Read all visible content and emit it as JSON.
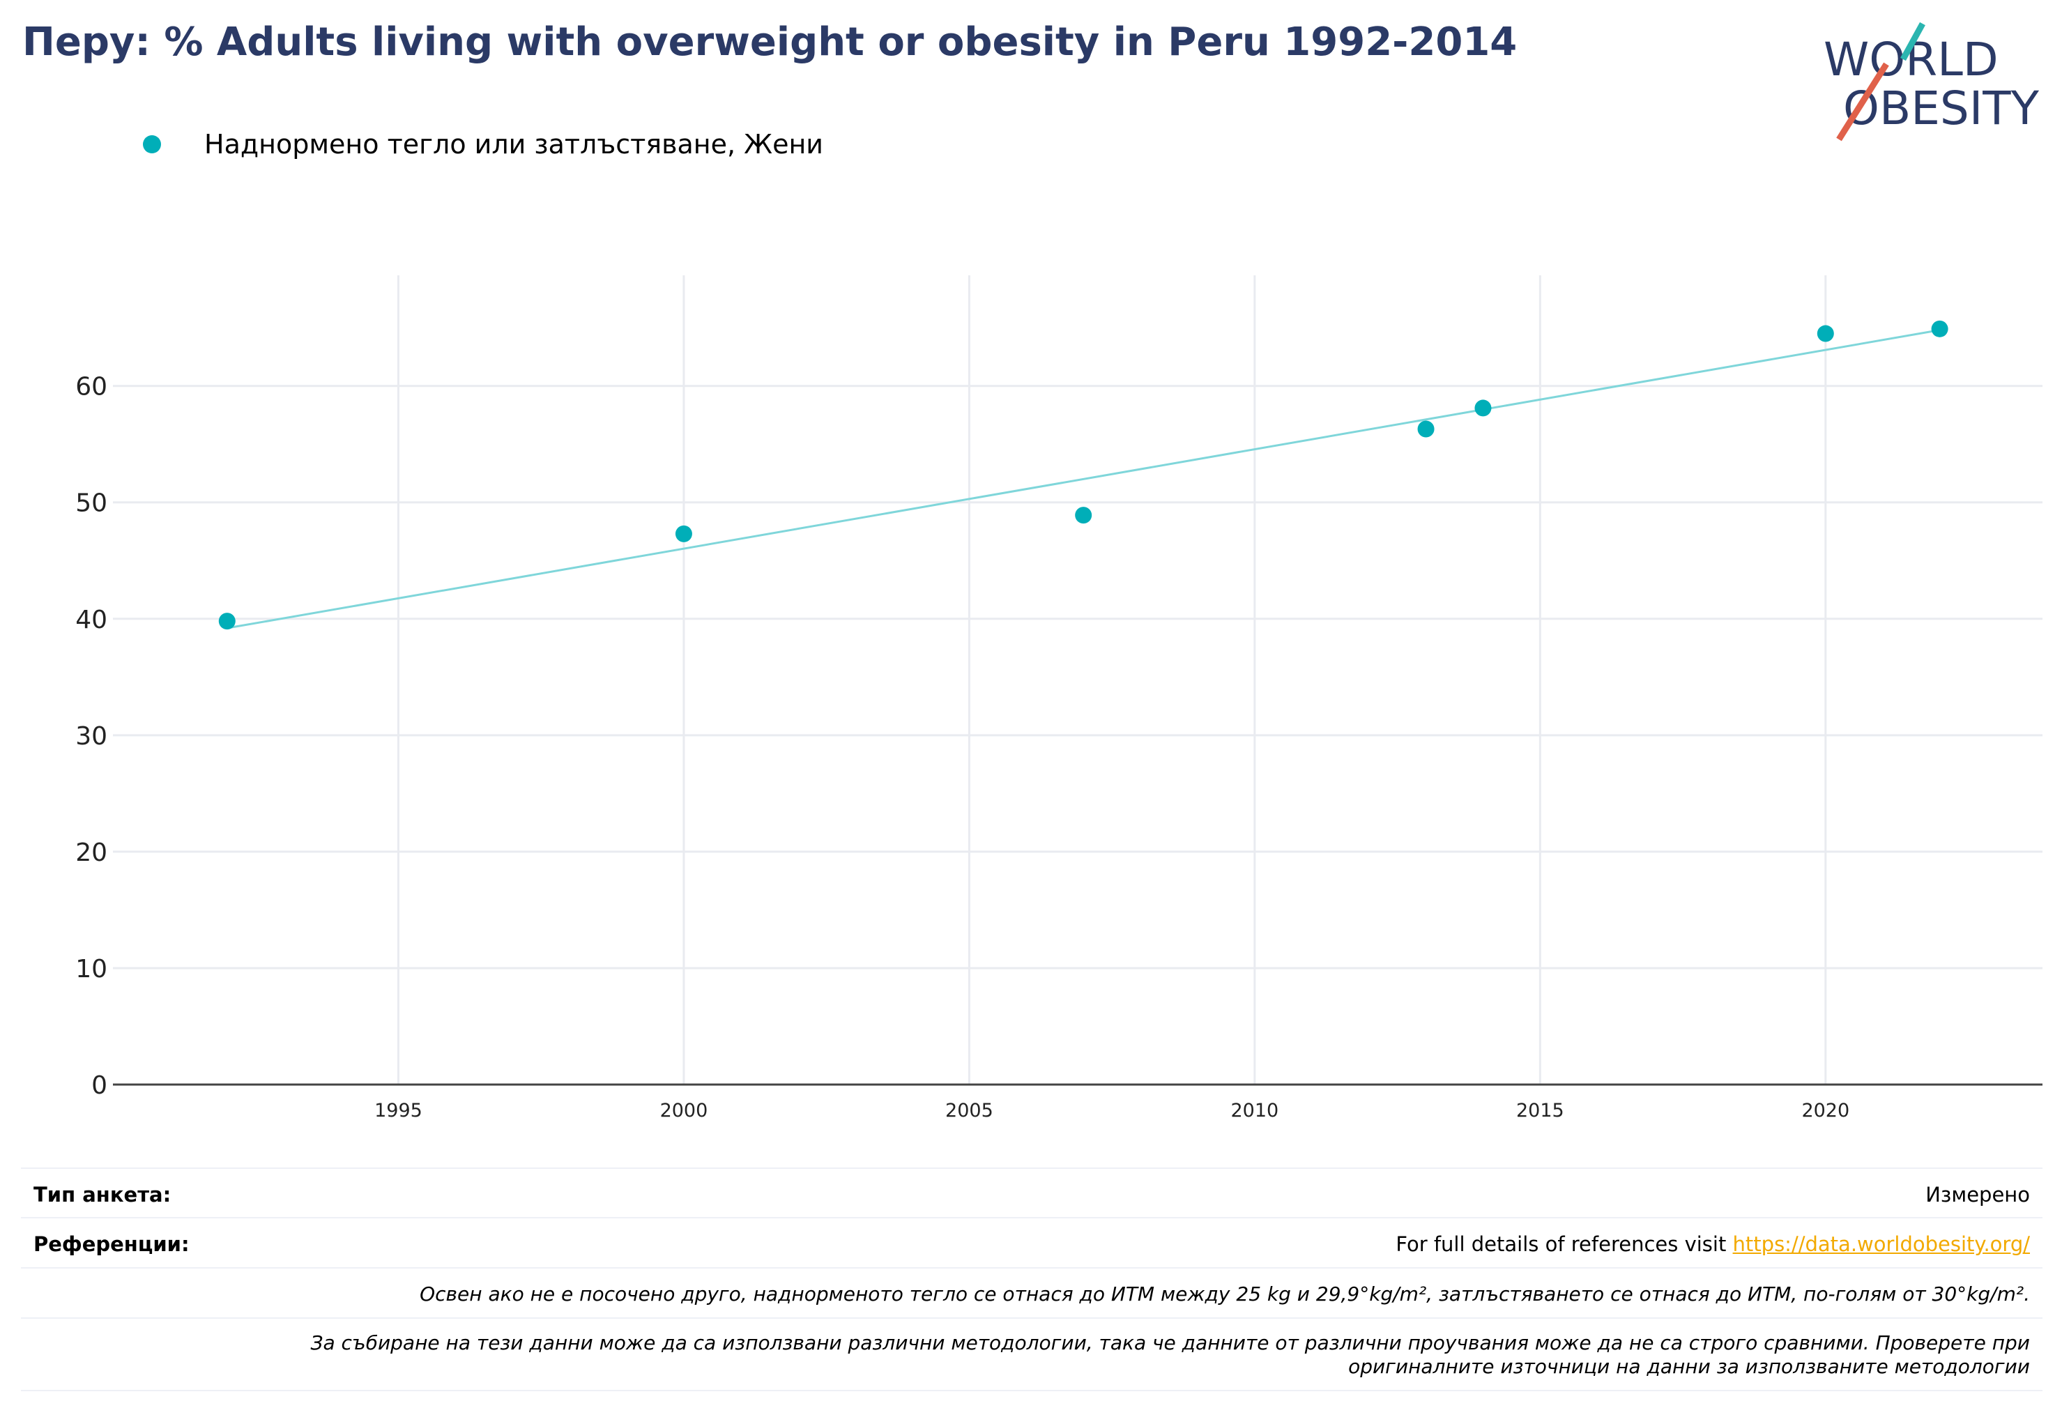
{
  "title": "Перу: % Adults living with overweight or obesity in Peru 1992-2014",
  "logo": {
    "line1": "WORLD",
    "line2": "OBESITY",
    "accent_teal": "#2bb5b0",
    "accent_red": "#e0614a",
    "text_color": "#2b3a66"
  },
  "chart_data": {
    "type": "scatter",
    "series": [
      {
        "name": "Наднормено тегло или затлъстяване, Жени",
        "color": "#00aeb8",
        "x": [
          1992,
          2000,
          2007,
          2013,
          2014,
          2020,
          2022
        ],
        "y": [
          39.8,
          47.3,
          48.9,
          56.3,
          58.1,
          64.5,
          64.9
        ]
      }
    ],
    "trendline": {
      "x": [
        1992,
        2022
      ],
      "y": [
        39.2,
        64.8
      ],
      "color": "#7fd6da"
    },
    "xlim": [
      1990,
      2023.8
    ],
    "ylim": [
      0,
      69.5
    ],
    "xticks": [
      1995,
      2000,
      2005,
      2010,
      2015,
      2020
    ],
    "yticks": [
      0,
      10,
      20,
      30,
      40,
      50,
      60
    ],
    "grid": true,
    "legend_position": "top-left"
  },
  "footer": {
    "survey_type_label": "Тип анкета:",
    "survey_type_value": "Измерено",
    "references_label": "Референции:",
    "references_text": "For full details of references visit ",
    "references_link": "https://data.worldobesity.org/",
    "note1": "Освен ако не е посочено друго, наднорменото тегло се отнася до ИТМ между 25 kg и 29,9°kg/m², затлъстяването се отнася до ИТМ, по-голям от 30°kg/m².",
    "note2_line1": "За събиране на тези данни може да са използвани различни методологии, така че данните от различни проучвания може да не са строго сравними. Проверете при",
    "note2_line2": "оригиналните източници на данни за използваните методологии"
  }
}
